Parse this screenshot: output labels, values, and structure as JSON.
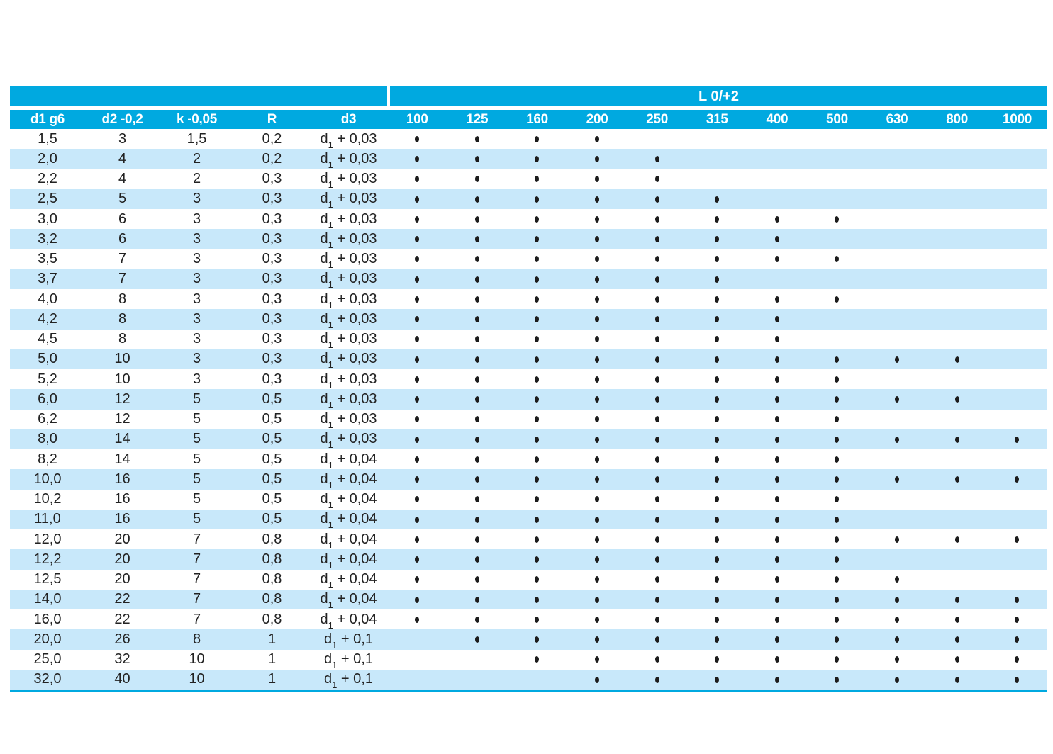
{
  "table": {
    "band": {
      "l_group_label": "L 0/+2"
    },
    "columns": [
      {
        "key": "d1",
        "label": "d1 g6"
      },
      {
        "key": "d2",
        "label": "d2 -0,2"
      },
      {
        "key": "k",
        "label": "k -0,05"
      },
      {
        "key": "r",
        "label": "R"
      },
      {
        "key": "d3",
        "label": "d3"
      }
    ],
    "lengths": [
      "100",
      "125",
      "160",
      "200",
      "250",
      "315",
      "400",
      "500",
      "630",
      "800",
      "1000"
    ],
    "icons": {
      "availability-dot": "•"
    },
    "colors": {
      "header_bg": "#00A9E0",
      "stripe_bg": "#C8E8FA",
      "header_text": "#FFFFFF",
      "body_text": "#222222",
      "dot": "#1C1C1C"
    },
    "rows": [
      {
        "d1": "1,5",
        "d2": "3",
        "k": "1,5",
        "r": "0,2",
        "d3": [
          "d",
          "1",
          " + 0,03"
        ],
        "dots": {
          "from": "100",
          "to": "200"
        }
      },
      {
        "d1": "2,0",
        "d2": "4",
        "k": "2",
        "r": "0,2",
        "d3": [
          "d",
          "1",
          " + 0,03"
        ],
        "dots": {
          "from": "100",
          "to": "250"
        }
      },
      {
        "d1": "2,2",
        "d2": "4",
        "k": "2",
        "r": "0,3",
        "d3": [
          "d",
          "1",
          " + 0,03"
        ],
        "dots": {
          "from": "100",
          "to": "250"
        }
      },
      {
        "d1": "2,5",
        "d2": "5",
        "k": "3",
        "r": "0,3",
        "d3": [
          "d",
          "1",
          " + 0,03"
        ],
        "dots": {
          "from": "100",
          "to": "315"
        }
      },
      {
        "d1": "3,0",
        "d2": "6",
        "k": "3",
        "r": "0,3",
        "d3": [
          "d",
          "1",
          " + 0,03"
        ],
        "dots": {
          "from": "100",
          "to": "500"
        }
      },
      {
        "d1": "3,2",
        "d2": "6",
        "k": "3",
        "r": "0,3",
        "d3": [
          "d",
          "1",
          " + 0,03"
        ],
        "dots": {
          "from": "100",
          "to": "400"
        }
      },
      {
        "d1": "3,5",
        "d2": "7",
        "k": "3",
        "r": "0,3",
        "d3": [
          "d",
          "1",
          " + 0,03"
        ],
        "dots": {
          "from": "100",
          "to": "500"
        }
      },
      {
        "d1": "3,7",
        "d2": "7",
        "k": "3",
        "r": "0,3",
        "d3": [
          "d",
          "1",
          " + 0,03"
        ],
        "dots": {
          "from": "100",
          "to": "315"
        }
      },
      {
        "d1": "4,0",
        "d2": "8",
        "k": "3",
        "r": "0,3",
        "d3": [
          "d",
          "1",
          " + 0,03"
        ],
        "dots": {
          "from": "100",
          "to": "500"
        }
      },
      {
        "d1": "4,2",
        "d2": "8",
        "k": "3",
        "r": "0,3",
        "d3": [
          "d",
          "1",
          " + 0,03"
        ],
        "dots": {
          "from": "100",
          "to": "400"
        }
      },
      {
        "d1": "4,5",
        "d2": "8",
        "k": "3",
        "r": "0,3",
        "d3": [
          "d",
          "1",
          " + 0,03"
        ],
        "dots": {
          "from": "100",
          "to": "400"
        }
      },
      {
        "d1": "5,0",
        "d2": "10",
        "k": "3",
        "r": "0,3",
        "d3": [
          "d",
          "1",
          " + 0,03"
        ],
        "dots": {
          "from": "100",
          "to": "800"
        }
      },
      {
        "d1": "5,2",
        "d2": "10",
        "k": "3",
        "r": "0,3",
        "d3": [
          "d",
          "1",
          " + 0,03"
        ],
        "dots": {
          "from": "100",
          "to": "500"
        }
      },
      {
        "d1": "6,0",
        "d2": "12",
        "k": "5",
        "r": "0,5",
        "d3": [
          "d",
          "1",
          " + 0,03"
        ],
        "dots": {
          "from": "100",
          "to": "800"
        }
      },
      {
        "d1": "6,2",
        "d2": "12",
        "k": "5",
        "r": "0,5",
        "d3": [
          "d",
          "1",
          " + 0,03"
        ],
        "dots": {
          "from": "100",
          "to": "500"
        }
      },
      {
        "d1": "8,0",
        "d2": "14",
        "k": "5",
        "r": "0,5",
        "d3": [
          "d",
          "1",
          " + 0,03"
        ],
        "dots": {
          "from": "100",
          "to": "1000"
        }
      },
      {
        "d1": "8,2",
        "d2": "14",
        "k": "5",
        "r": "0,5",
        "d3": [
          "d",
          "1",
          " + 0,04"
        ],
        "dots": {
          "from": "100",
          "to": "500"
        }
      },
      {
        "d1": "10,0",
        "d2": "16",
        "k": "5",
        "r": "0,5",
        "d3": [
          "d",
          "1",
          " + 0,04"
        ],
        "dots": {
          "from": "100",
          "to": "1000"
        }
      },
      {
        "d1": "10,2",
        "d2": "16",
        "k": "5",
        "r": "0,5",
        "d3": [
          "d",
          "1",
          " + 0,04"
        ],
        "dots": {
          "from": "100",
          "to": "500"
        }
      },
      {
        "d1": "11,0",
        "d2": "16",
        "k": "5",
        "r": "0,5",
        "d3": [
          "d",
          "1",
          " + 0,04"
        ],
        "dots": {
          "from": "100",
          "to": "500"
        }
      },
      {
        "d1": "12,0",
        "d2": "20",
        "k": "7",
        "r": "0,8",
        "d3": [
          "d",
          "1",
          " + 0,04"
        ],
        "dots": {
          "from": "100",
          "to": "1000"
        }
      },
      {
        "d1": "12,2",
        "d2": "20",
        "k": "7",
        "r": "0,8",
        "d3": [
          "d",
          "1",
          " + 0,04"
        ],
        "dots": {
          "from": "100",
          "to": "500"
        }
      },
      {
        "d1": "12,5",
        "d2": "20",
        "k": "7",
        "r": "0,8",
        "d3": [
          "d",
          "1",
          " + 0,04"
        ],
        "dots": {
          "from": "100",
          "to": "630"
        }
      },
      {
        "d1": "14,0",
        "d2": "22",
        "k": "7",
        "r": "0,8",
        "d3": [
          "d",
          "1",
          " + 0,04"
        ],
        "dots": {
          "from": "100",
          "to": "1000"
        }
      },
      {
        "d1": "16,0",
        "d2": "22",
        "k": "7",
        "r": "0,8",
        "d3": [
          "d",
          "1",
          " + 0,04"
        ],
        "dots": {
          "from": "100",
          "to": "1000"
        }
      },
      {
        "d1": "20,0",
        "d2": "26",
        "k": "8",
        "r": "1",
        "d3": [
          "d",
          "1",
          " + 0,1"
        ],
        "dots": {
          "from": "125",
          "to": "1000"
        }
      },
      {
        "d1": "25,0",
        "d2": "32",
        "k": "10",
        "r": "1",
        "d3": [
          "d",
          "1",
          " + 0,1"
        ],
        "dots": {
          "from": "160",
          "to": "1000"
        }
      },
      {
        "d1": "32,0",
        "d2": "40",
        "k": "10",
        "r": "1",
        "d3": [
          "d",
          "1",
          " + 0,1"
        ],
        "dots": {
          "from": "200",
          "to": "1000"
        }
      }
    ]
  }
}
